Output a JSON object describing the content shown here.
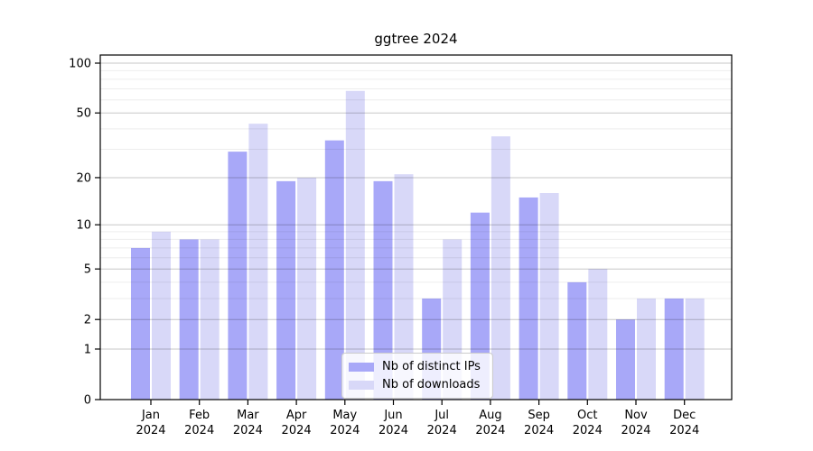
{
  "title": "ggtree 2024",
  "chart_data": {
    "type": "bar",
    "title": "ggtree 2024",
    "categories": [
      "Jan 2024",
      "Feb 2024",
      "Mar 2024",
      "Apr 2024",
      "May 2024",
      "Jun 2024",
      "Jul 2024",
      "Aug 2024",
      "Sep 2024",
      "Oct 2024",
      "Nov 2024",
      "Dec 2024"
    ],
    "series": [
      {
        "name": "Nb of distinct IPs",
        "color": "#a8a8f8",
        "values": [
          7,
          8,
          29,
          19,
          34,
          19,
          3,
          12,
          15,
          4,
          2,
          3
        ]
      },
      {
        "name": "Nb of downloads",
        "color": "#d8d8f8",
        "values": [
          9,
          8,
          43,
          20,
          68,
          21,
          8,
          36,
          16,
          5,
          3,
          3
        ]
      }
    ],
    "xlabel": "",
    "ylabel": "",
    "y_scale": "log1p",
    "y_ticks": [
      0,
      1,
      2,
      5,
      10,
      20,
      50,
      100
    ],
    "y_minor_gridlines": [
      3,
      4,
      6,
      7,
      8,
      9,
      30,
      40,
      60,
      70,
      80,
      90
    ],
    "ylim": [
      0,
      100
    ],
    "grid": true,
    "legend_position": "inside-bottom-center",
    "colors": {
      "major_grid": "rgba(0,0,0,0.22)",
      "minor_grid": "rgba(0,0,0,0.07)",
      "axis": "#000000",
      "background": "#ffffff"
    }
  }
}
